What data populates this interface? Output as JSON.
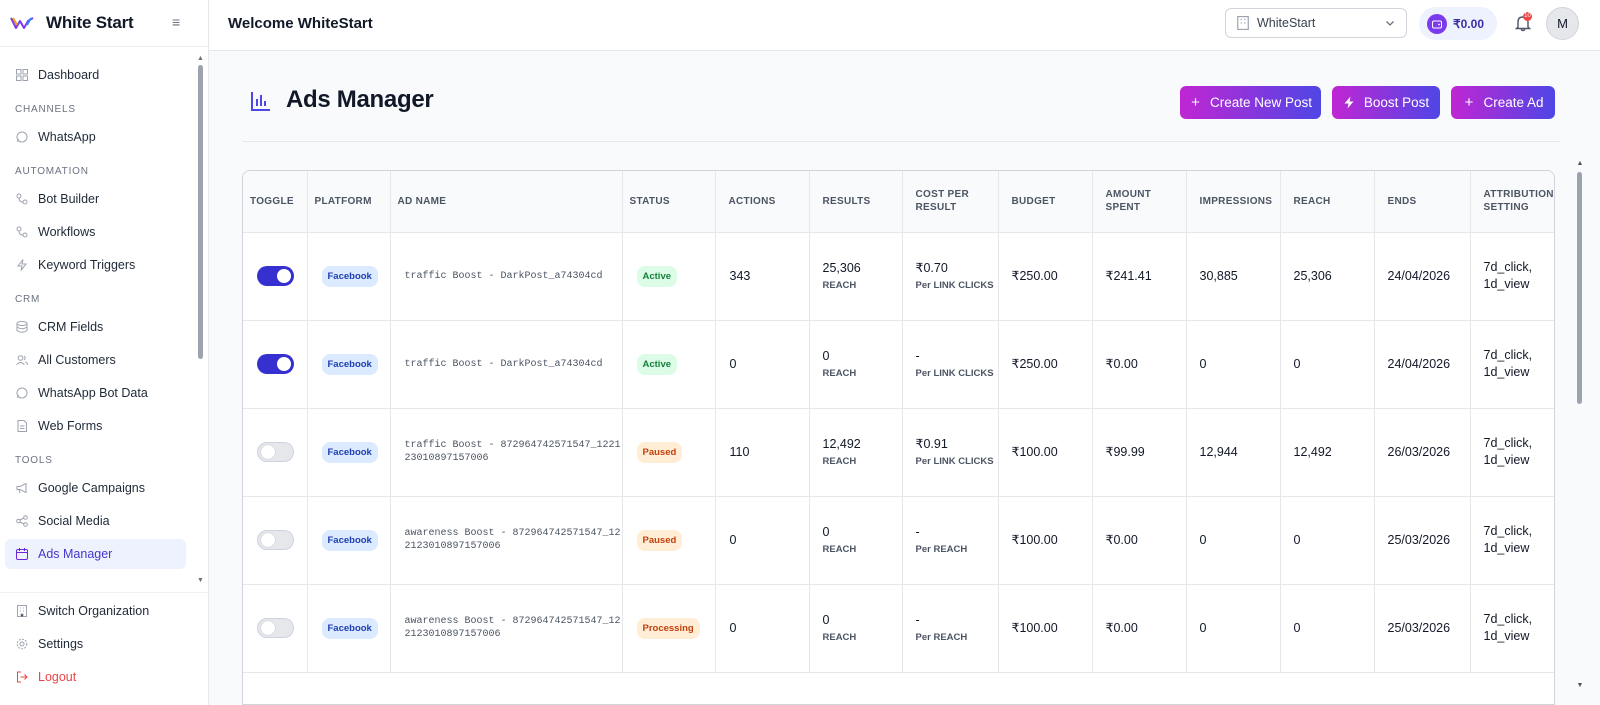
{
  "brand": {
    "name": "White Start"
  },
  "sidebar": {
    "items": [
      {
        "label": "Dashboard",
        "icon": "grid-icon"
      },
      {
        "label": "WhatsApp",
        "icon": "whatsapp-icon"
      },
      {
        "label": "Bot Builder",
        "icon": "flow-icon"
      },
      {
        "label": "Workflows",
        "icon": "flow-icon"
      },
      {
        "label": "Keyword Triggers",
        "icon": "bolt-icon"
      },
      {
        "label": "CRM Fields",
        "icon": "database-icon"
      },
      {
        "label": "All Customers",
        "icon": "users-icon"
      },
      {
        "label": "WhatsApp Bot Data",
        "icon": "whatsapp-icon"
      },
      {
        "label": "Web Forms",
        "icon": "document-icon"
      },
      {
        "label": "Google Campaigns",
        "icon": "megaphone-icon"
      },
      {
        "label": "Social Media",
        "icon": "share-icon"
      },
      {
        "label": "Ads Manager",
        "icon": "calendar-icon"
      }
    ],
    "sections": [
      "CHANNELS",
      "AUTOMATION",
      "CRM",
      "TOOLS"
    ],
    "bottom": {
      "switch_org": "Switch Organization",
      "settings": "Settings",
      "logout": "Logout"
    }
  },
  "header": {
    "welcome": "Welcome WhiteStart",
    "org": "WhiteStart",
    "wallet": "₹0.00",
    "bell_badge": "10",
    "avatar": "M"
  },
  "page": {
    "title": "Ads Manager",
    "buttons": {
      "create_post": "Create New Post",
      "boost_post": "Boost Post",
      "create_ad": "Create Ad"
    }
  },
  "table": {
    "headers": [
      "TOGGLE",
      "PLATFORM",
      "AD NAME",
      "STATUS",
      "ACTIONS",
      "RESULTS",
      "COST PER RESULT",
      "BUDGET",
      "AMOUNT SPENT",
      "IMPRESSIONS",
      "REACH",
      "ENDS",
      "ATTRIBUTION SETTING"
    ],
    "rows": [
      {
        "toggle": "on",
        "platform": "Facebook",
        "ad_name": "traffic Boost - DarkPost_a74304cd",
        "status": "Active",
        "actions": "343",
        "results": "25,306",
        "results_sub": "REACH",
        "cost": "₹0.70",
        "cost_sub": "Per LINK CLICKS",
        "budget": "₹250.00",
        "spent": "₹241.41",
        "impressions": "30,885",
        "reach": "25,306",
        "ends": "24/04/2026",
        "attribution": "7d_click, 1d_view"
      },
      {
        "toggle": "on",
        "platform": "Facebook",
        "ad_name": "traffic Boost - DarkPost_a74304cd",
        "status": "Active",
        "actions": "0",
        "results": "0",
        "results_sub": "REACH",
        "cost": "-",
        "cost_sub": "Per LINK CLICKS",
        "budget": "₹250.00",
        "spent": "₹0.00",
        "impressions": "0",
        "reach": "0",
        "ends": "24/04/2026",
        "attribution": "7d_click, 1d_view"
      },
      {
        "toggle": "off",
        "platform": "Facebook",
        "ad_name": "traffic Boost - 872964742571547_122123010897157006",
        "status": "Paused",
        "actions": "110",
        "results": "12,492",
        "results_sub": "REACH",
        "cost": "₹0.91",
        "cost_sub": "Per LINK CLICKS",
        "budget": "₹100.00",
        "spent": "₹99.99",
        "impressions": "12,944",
        "reach": "12,492",
        "ends": "26/03/2026",
        "attribution": "7d_click, 1d_view"
      },
      {
        "toggle": "off",
        "platform": "Facebook",
        "ad_name": "awareness Boost - 872964742571547_122123010897157006",
        "status": "Paused",
        "actions": "0",
        "results": "0",
        "results_sub": "REACH",
        "cost": "-",
        "cost_sub": "Per REACH",
        "budget": "₹100.00",
        "spent": "₹0.00",
        "impressions": "0",
        "reach": "0",
        "ends": "25/03/2026",
        "attribution": "7d_click, 1d_view"
      },
      {
        "toggle": "off",
        "platform": "Facebook",
        "ad_name": "awareness Boost - 872964742571547_122123010897157006",
        "status": "Processing",
        "actions": "0",
        "results": "0",
        "results_sub": "REACH",
        "cost": "-",
        "cost_sub": "Per REACH",
        "budget": "₹100.00",
        "spent": "₹0.00",
        "impressions": "0",
        "reach": "0",
        "ends": "25/03/2026",
        "attribution": "7d_click, 1d_view"
      }
    ]
  },
  "colors": {
    "accent": "#4f46e5",
    "gradient_start": "#c026d3",
    "active_toggle": "#3730d1"
  }
}
